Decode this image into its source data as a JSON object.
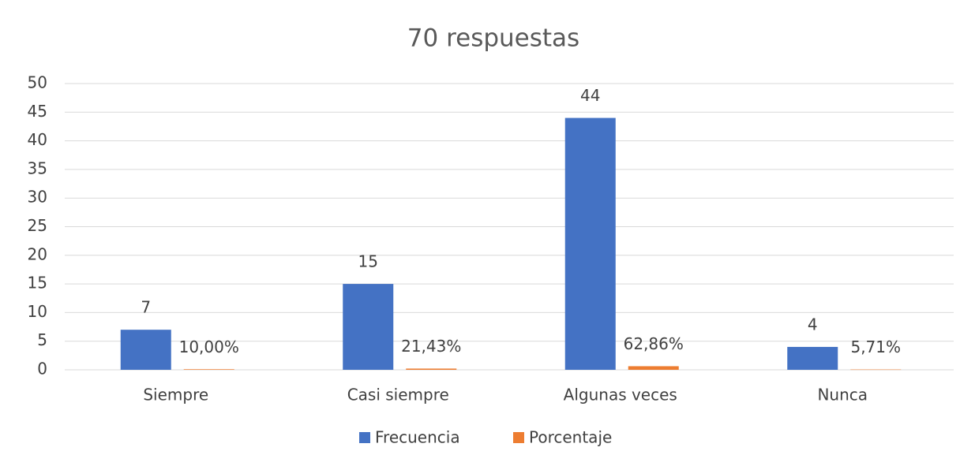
{
  "chart_data": {
    "type": "bar",
    "title": "70 respuestas",
    "categories": [
      "Siempre",
      "Casi siempre",
      "Algunas veces",
      "Nunca"
    ],
    "series": [
      {
        "name": "Frecuencia",
        "color": "#4472c4",
        "values": [
          7,
          15,
          44,
          4
        ]
      },
      {
        "name": "Porcentaje",
        "color": "#ed7d31",
        "values": [
          0.1,
          0.2143,
          0.6286,
          0.0571
        ],
        "value_labels": [
          "10,00%",
          "21,43%",
          "62,86%",
          "5,71%"
        ]
      }
    ],
    "ylim": [
      0,
      50
    ],
    "yticks": [
      0,
      5,
      10,
      15,
      20,
      25,
      30,
      35,
      40,
      45,
      50
    ],
    "grid": true,
    "legend": "bottom"
  }
}
